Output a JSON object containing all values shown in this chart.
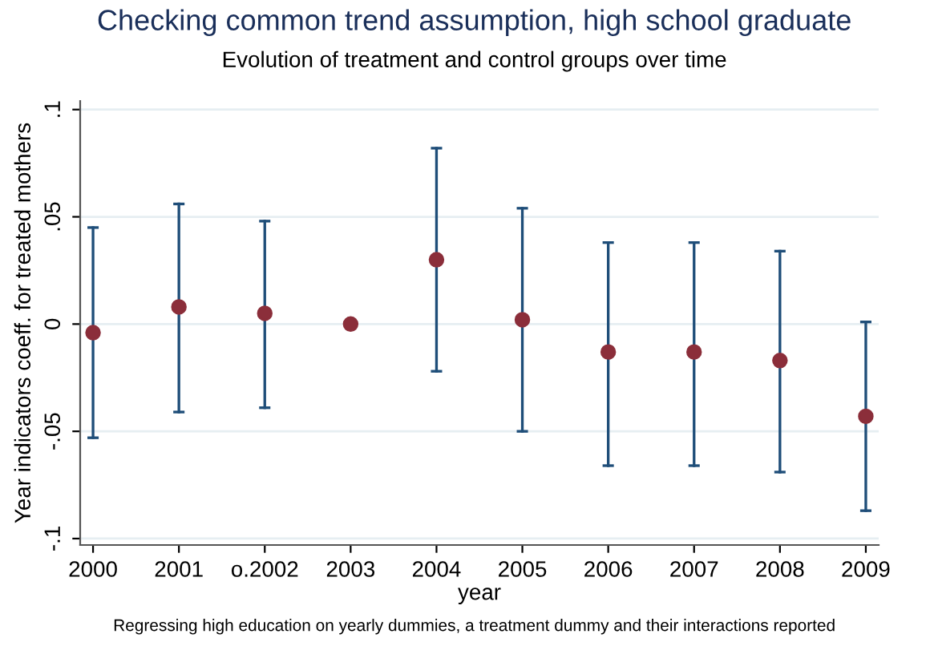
{
  "chart_data": {
    "type": "scatter",
    "title": "Checking common trend assumption, high school graduate",
    "subtitle": "Evolution of treatment and control groups over time",
    "xlabel": "year",
    "ylabel": "Year indicators coeff. for treated mothers",
    "annotations": [
      "Regressing high education on yearly dummies, a treatment dummy and their interactions reported"
    ],
    "categories": [
      "2000",
      "2001",
      "o.2002",
      "2003",
      "2004",
      "2005",
      "2006",
      "2007",
      "2008",
      "2009"
    ],
    "series": [
      {
        "color": "#8b2e3a",
        "values": [
          -0.004,
          0.008,
          0.005,
          0.0,
          0.03,
          0.002,
          -0.013,
          -0.013,
          -0.017,
          -0.043
        ],
        "errors": [
          [
            -0.053,
            0.045
          ],
          [
            -0.041,
            0.056
          ],
          [
            -0.039,
            0.048
          ],
          null,
          [
            -0.022,
            0.082
          ],
          [
            -0.05,
            0.054
          ],
          [
            -0.066,
            0.038
          ],
          [
            -0.066,
            0.038
          ],
          [
            -0.069,
            0.034
          ],
          [
            -0.087,
            0.001
          ]
        ]
      }
    ],
    "ylim": [
      -0.103,
      0.104
    ],
    "yticks": [
      {
        "value": -0.1,
        "label": "-.1"
      },
      {
        "value": -0.05,
        "label": "-.05"
      },
      {
        "value": 0,
        "label": "0"
      },
      {
        "value": 0.05,
        "label": ".05"
      },
      {
        "value": 0.1,
        "label": ".1"
      }
    ],
    "grid": "y",
    "marker": "circle"
  }
}
